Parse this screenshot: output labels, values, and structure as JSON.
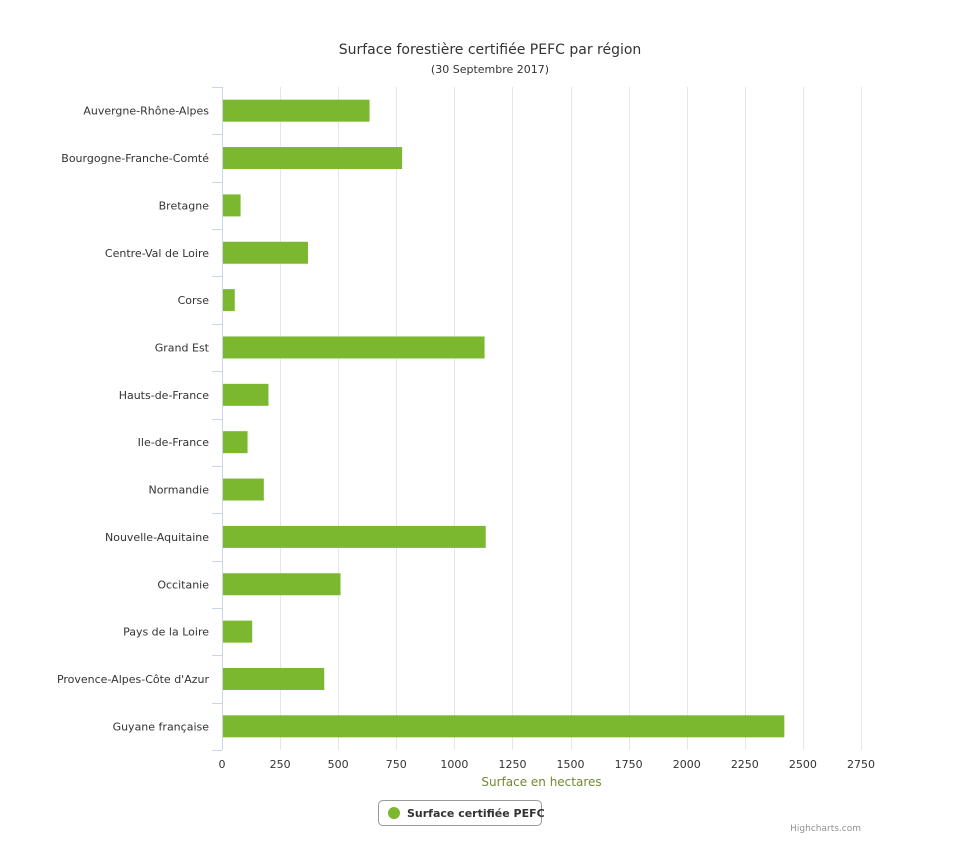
{
  "chart_data": {
    "type": "bar",
    "orientation": "horizontal",
    "title": "Surface forestière certifiée PEFC par région",
    "subtitle": "(30 Septembre 2017)",
    "xlabel": "Surface en hectares",
    "ylabel": "",
    "xlim": [
      0,
      2750
    ],
    "xticks": [
      0,
      250,
      500,
      750,
      1000,
      1250,
      1500,
      1750,
      2000,
      2250,
      2500,
      2750
    ],
    "grid": true,
    "legend_position": "bottom-center",
    "bar_color": "#7cb82f",
    "categories": [
      "Auvergne-Rhône-Alpes",
      "Bourgogne-Franche-Comté",
      "Bretagne",
      "Centre-Val de Loire",
      "Corse",
      "Grand Est",
      "Hauts-de-France",
      "Ile-de-France",
      "Normandie",
      "Nouvelle-Aquitaine",
      "Occitanie",
      "Pays de la Loire",
      "Provence-Alpes-Côte d'Azur",
      "Guyane française"
    ],
    "series": [
      {
        "name": "Surface certifiée PEFC",
        "values": [
          635,
          775,
          80,
          370,
          55,
          1130,
          200,
          110,
          180,
          1135,
          510,
          130,
          440,
          2420
        ]
      }
    ]
  },
  "credits": "Highcharts.com"
}
